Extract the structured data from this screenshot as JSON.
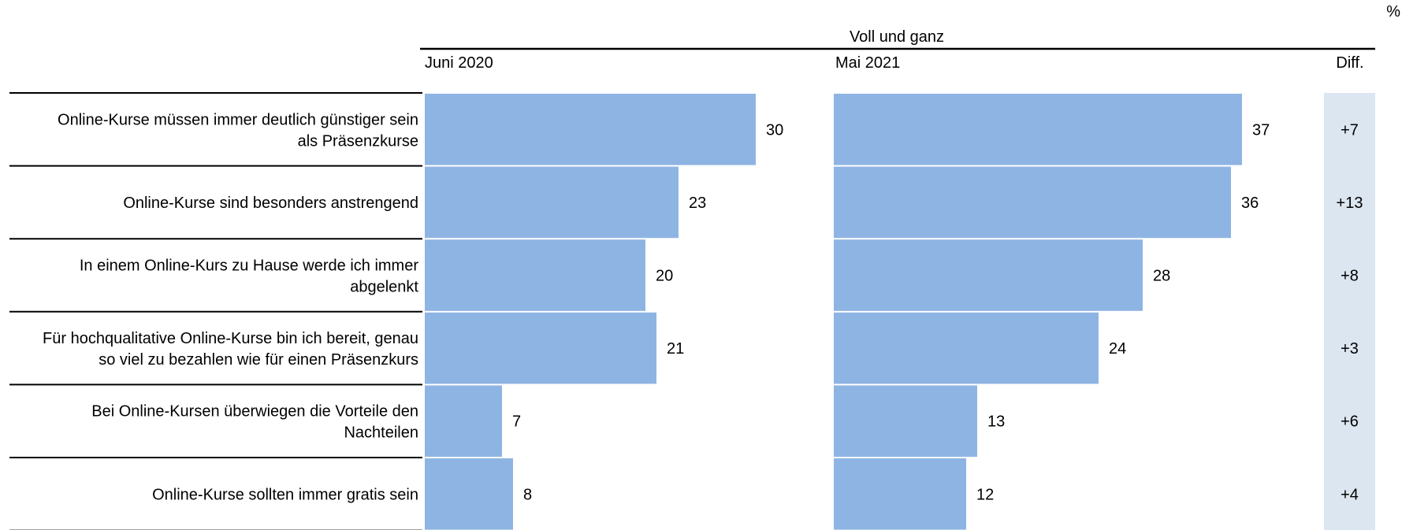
{
  "chart_data": {
    "type": "bar",
    "orientation": "horizontal",
    "unit": "%",
    "header": "Voll und ganz",
    "diff_header": "Diff.",
    "categories": [
      [
        "Online-Kurse müssen immer deutlich günstiger sein",
        "als Präsenzkurse"
      ],
      [
        "Online-Kurse sind besonders anstrengend"
      ],
      [
        "In einem Online-Kurs zu Hause werde ich immer",
        "abgelenkt"
      ],
      [
        "Für hochqualitative Online-Kurse bin ich bereit, genau",
        "so viel zu bezahlen wie für einen Präsenzkurs"
      ],
      [
        "Bei Online-Kursen überwiegen die Vorteile den",
        "Nachteilen"
      ],
      [
        "Online-Kurse sollten immer gratis sein"
      ]
    ],
    "series": [
      {
        "name": "Juni 2020",
        "values": [
          30,
          23,
          20,
          21,
          7,
          8
        ]
      },
      {
        "name": "Mai 2021",
        "values": [
          37,
          36,
          28,
          24,
          13,
          12
        ]
      }
    ],
    "diff": [
      "+7",
      "+13",
      "+8",
      "+3",
      "+6",
      "+4"
    ],
    "bar_color": "#8eb4e3",
    "diff_bg_color": "#dce6f1"
  }
}
